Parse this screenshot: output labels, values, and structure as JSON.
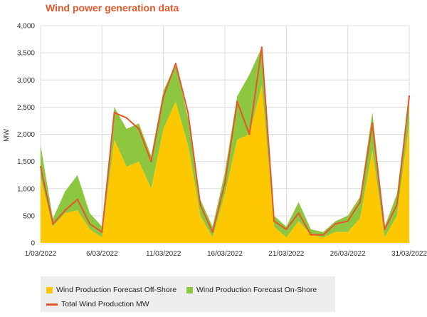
{
  "colors": {
    "offshore": "#fdc800",
    "onshore": "#8dc63f",
    "total": "#e8562a",
    "title": "#e8562a",
    "grid": "#dddddd"
  },
  "chart_data": {
    "type": "area",
    "title": "Wind power generation data",
    "xlabel": "",
    "ylabel": "MW",
    "ylim": [
      0,
      4000
    ],
    "y_ticks": [
      "0",
      "500",
      "1,000",
      "1,500",
      "2,000",
      "2,500",
      "3,000",
      "3,500",
      "4,000"
    ],
    "x_tick_labels": [
      "1/03/2022",
      "6/03/2022",
      "11/03/2022",
      "16/03/2022",
      "21/03/2022",
      "26/03/2022",
      "31/03/2022"
    ],
    "x_range": [
      "2022-03-01",
      "2022-03-31"
    ],
    "grid": true,
    "legend_position": "bottom",
    "x": [
      "2022-03-01",
      "2022-03-02",
      "2022-03-03",
      "2022-03-04",
      "2022-03-05",
      "2022-03-06",
      "2022-03-07",
      "2022-03-08",
      "2022-03-09",
      "2022-03-10",
      "2022-03-11",
      "2022-03-12",
      "2022-03-13",
      "2022-03-14",
      "2022-03-15",
      "2022-03-16",
      "2022-03-17",
      "2022-03-18",
      "2022-03-19",
      "2022-03-20",
      "2022-03-21",
      "2022-03-22",
      "2022-03-23",
      "2022-03-24",
      "2022-03-25",
      "2022-03-26",
      "2022-03-27",
      "2022-03-28",
      "2022-03-29",
      "2022-03-30",
      "2022-03-31"
    ],
    "series": [
      {
        "name": "Wind Production Forecast Off-Shore",
        "values": [
          1200,
          300,
          550,
          600,
          250,
          100,
          1900,
          1400,
          1500,
          1000,
          2100,
          2600,
          1800,
          500,
          100,
          900,
          1900,
          2000,
          2900,
          300,
          100,
          400,
          150,
          100,
          200,
          200,
          450,
          1700,
          100,
          500,
          2200
        ]
      },
      {
        "name": "Wind Production Forecast On-Shore",
        "values": [
          600,
          150,
          400,
          650,
          300,
          200,
          600,
          700,
          700,
          600,
          700,
          700,
          500,
          300,
          200,
          400,
          800,
          1100,
          700,
          200,
          200,
          350,
          100,
          100,
          200,
          300,
          400,
          700,
          200,
          400,
          500
        ]
      },
      {
        "name": "Total Wind Production MW",
        "values": [
          1400,
          350,
          600,
          800,
          350,
          200,
          2400,
          2300,
          2100,
          1500,
          2700,
          3300,
          2400,
          700,
          200,
          1100,
          2600,
          2000,
          3600,
          400,
          250,
          550,
          150,
          150,
          350,
          400,
          750,
          2200,
          250,
          700,
          2700
        ]
      }
    ]
  }
}
